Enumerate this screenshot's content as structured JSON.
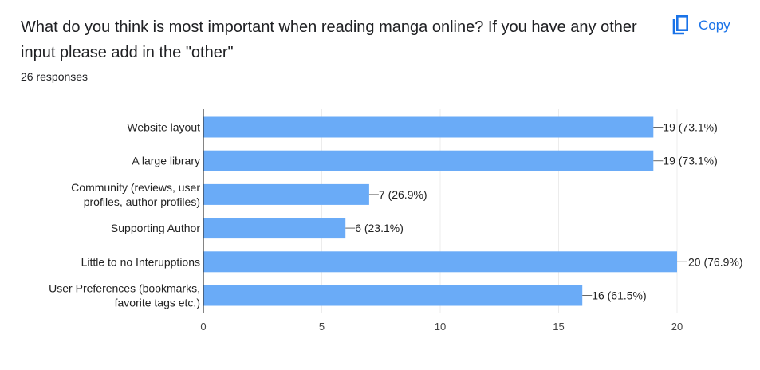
{
  "question": {
    "text": "What do you think is most important when reading manga online? If you have any other input please add in the \"other\"",
    "responses": "26 responses"
  },
  "toolbar": {
    "copy_label": "Copy"
  },
  "colors": {
    "bar": "#6aabf7",
    "accent": "#1a73e8",
    "grid": "#ececec",
    "axis": "#333333"
  },
  "icons": {
    "copy": "copy-icon"
  },
  "chart_data": {
    "type": "bar",
    "orientation": "horizontal",
    "categories": [
      [
        "Website layout"
      ],
      [
        "A large library"
      ],
      [
        "Community (reviews, user",
        "profiles, author profiles)"
      ],
      [
        "Supporting Author"
      ],
      [
        "Little to no Interupptions"
      ],
      [
        "User Preferences (bookmarks,",
        "favorite tags etc.)"
      ]
    ],
    "values": [
      19,
      19,
      7,
      6,
      20,
      16
    ],
    "data_labels": [
      "19 (73.1%)",
      "19 (73.1%)",
      "7 (26.9%)",
      "6 (23.1%)",
      "20 (76.9%)",
      "16 (61.5%)"
    ],
    "xlim": [
      0,
      20
    ],
    "xticks": [
      0,
      5,
      10,
      15,
      20
    ],
    "grid": true
  }
}
